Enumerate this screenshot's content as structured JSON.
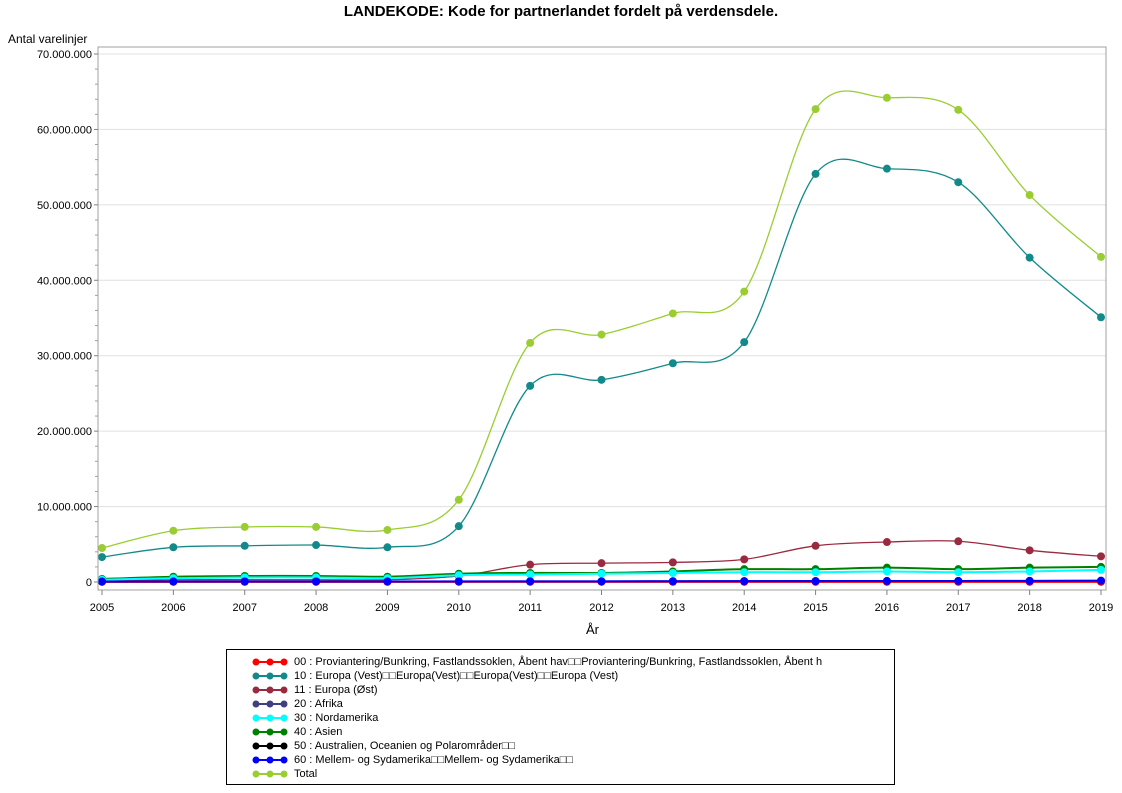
{
  "chart_data": {
    "type": "line",
    "title": "LANDEKODE: Kode for partnerlandet fordelt på verdensdele.",
    "xlabel": "År",
    "ylabel": "Antal varelinjer",
    "x": [
      2005,
      2006,
      2007,
      2008,
      2009,
      2010,
      2011,
      2012,
      2013,
      2014,
      2015,
      2016,
      2017,
      2018,
      2019
    ],
    "ylim": [
      0,
      70000000
    ],
    "yticks": [
      0,
      10000000,
      20000000,
      30000000,
      40000000,
      50000000,
      60000000,
      70000000
    ],
    "ytick_labels": [
      "0",
      "10.000.000",
      "20.000.000",
      "30.000.000",
      "40.000.000",
      "50.000.000",
      "60.000.000",
      "70.000.000"
    ],
    "grid": true,
    "legend_position": "bottom",
    "series": [
      {
        "name": "00 : Proviantering/Bunkring, Fastlandssoklen, Åbent hav□□Proviantering/Bunkring, Fastlandssoklen, Åbent h",
        "color": "#ff0000",
        "values": [
          20000,
          20000,
          20000,
          20000,
          20000,
          20000,
          20000,
          20000,
          20000,
          20000,
          20000,
          20000,
          20000,
          20000,
          20000
        ]
      },
      {
        "name": "10 : Europa (Vest)□□Europa(Vest)□□Europa(Vest)□□Europa (Vest)",
        "color": "#138a8a",
        "values": [
          3300000,
          4600000,
          4800000,
          4900000,
          4600000,
          7400000,
          26000000,
          26800000,
          29000000,
          31800000,
          54100000,
          54800000,
          53000000,
          43000000,
          35100000
        ]
      },
      {
        "name": "11 : Europa (Øst)",
        "color": "#9a2a40",
        "values": [
          200000,
          300000,
          300000,
          300000,
          300000,
          800000,
          2300000,
          2500000,
          2600000,
          3000000,
          4800000,
          5300000,
          5400000,
          4200000,
          3400000
        ]
      },
      {
        "name": "20 : Afrika",
        "color": "#404080",
        "values": [
          50000,
          60000,
          60000,
          60000,
          60000,
          70000,
          80000,
          80000,
          90000,
          100000,
          110000,
          110000,
          110000,
          110000,
          120000
        ]
      },
      {
        "name": "30 : Nordamerika",
        "color": "#00ffff",
        "values": [
          300000,
          500000,
          600000,
          600000,
          500000,
          900000,
          1000000,
          1100000,
          1200000,
          1300000,
          1300000,
          1400000,
          1300000,
          1400000,
          1600000
        ]
      },
      {
        "name": "40 : Asien",
        "color": "#008000",
        "values": [
          400000,
          700000,
          800000,
          800000,
          700000,
          1100000,
          1200000,
          1200000,
          1400000,
          1700000,
          1700000,
          1900000,
          1700000,
          1900000,
          2000000
        ]
      },
      {
        "name": "50 : Australien, Oceanien og Polarområder□□",
        "color": "#000000",
        "values": [
          40000,
          50000,
          50000,
          50000,
          50000,
          60000,
          70000,
          70000,
          80000,
          90000,
          100000,
          110000,
          120000,
          130000,
          140000
        ]
      },
      {
        "name": "60 : Mellem- og Sydamerika□□Mellem- og Sydamerika□□",
        "color": "#0000ff",
        "values": [
          60000,
          70000,
          70000,
          70000,
          70000,
          80000,
          90000,
          90000,
          100000,
          110000,
          120000,
          130000,
          140000,
          150000,
          180000
        ]
      },
      {
        "name": "Total",
        "color": "#9acd32",
        "values": [
          4500000,
          6800000,
          7300000,
          7300000,
          6900000,
          10900000,
          31700000,
          32800000,
          35600000,
          38500000,
          62700000,
          64200000,
          62600000,
          51300000,
          43100000
        ]
      }
    ]
  }
}
